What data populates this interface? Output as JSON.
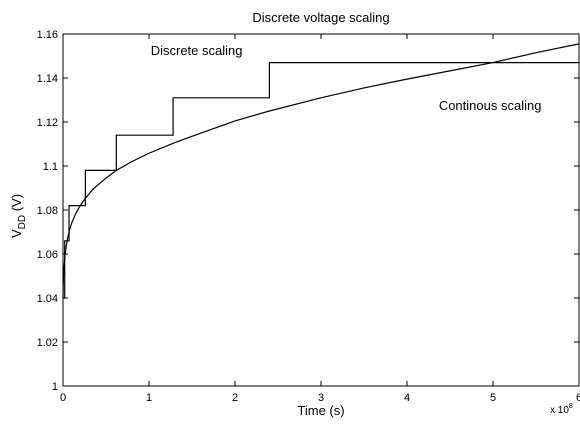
{
  "chart_data": {
    "type": "line",
    "title": "Discrete voltage scaling",
    "xlabel": "Time (s)",
    "ylabel_main": "V",
    "ylabel_sub": "DD",
    "ylabel_unit": " (V)",
    "x_multiplier_base": "x 10",
    "x_multiplier_exp": "8",
    "xlim": [
      0,
      6
    ],
    "ylim": [
      1.0,
      1.16
    ],
    "x_ticks": [
      0,
      1,
      2,
      3,
      4,
      5,
      6
    ],
    "x_tick_labels": [
      "0",
      "1",
      "2",
      "3",
      "4",
      "5",
      "6"
    ],
    "y_ticks": [
      1.0,
      1.02,
      1.04,
      1.06,
      1.08,
      1.1,
      1.12,
      1.14,
      1.16
    ],
    "y_tick_labels": [
      "1",
      "1.02",
      "1.04",
      "1.06",
      "1.08",
      "1.1",
      "1.12",
      "1.14",
      "1.16"
    ],
    "annotations": [
      {
        "text": "Discrete scaling",
        "x": 1.02,
        "y": 1.1505
      },
      {
        "text": "Continous scaling",
        "x": 4.37,
        "y": 1.1255
      }
    ],
    "series": [
      {
        "name": "Discrete scaling",
        "style": "step",
        "color": "#000000",
        "x": [
          0,
          0.02,
          0.02,
          0.07,
          0.07,
          0.26,
          0.26,
          0.62,
          0.62,
          1.28,
          1.28,
          2.4,
          2.4,
          6.0
        ],
        "y": [
          1.04,
          1.04,
          1.066,
          1.066,
          1.082,
          1.082,
          1.098,
          1.098,
          1.114,
          1.114,
          1.131,
          1.131,
          1.147,
          1.147
        ]
      },
      {
        "name": "Continous scaling",
        "style": "line",
        "color": "#000000",
        "x": [
          0,
          0.002,
          0.005,
          0.01,
          0.02,
          0.03,
          0.05,
          0.07,
          0.1,
          0.15,
          0.2,
          0.26,
          0.35,
          0.5,
          0.62,
          0.8,
          1.0,
          1.28,
          1.5,
          2.0,
          2.4,
          3.0,
          3.5,
          4.0,
          4.4,
          5.0,
          5.5,
          6.0
        ],
        "y": [
          1.04,
          1.045,
          1.049,
          1.053,
          1.058,
          1.0615,
          1.0665,
          1.07,
          1.074,
          1.0785,
          1.082,
          1.0853,
          1.0895,
          1.0945,
          1.098,
          1.102,
          1.1058,
          1.1103,
          1.1135,
          1.1205,
          1.125,
          1.131,
          1.1355,
          1.1395,
          1.1425,
          1.147,
          1.1515,
          1.1555
        ]
      }
    ]
  }
}
